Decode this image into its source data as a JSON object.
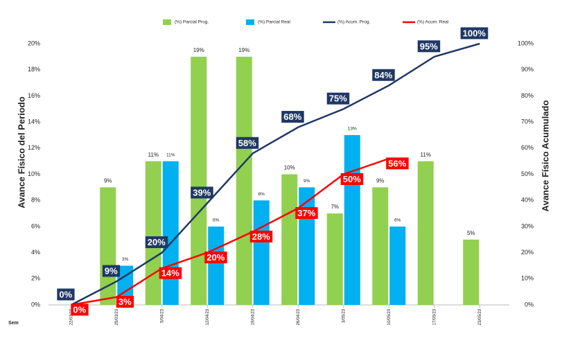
{
  "chart_data": {
    "type": "bar",
    "y_label": "Avance Físico del Periodo",
    "y2_label": "Avance Físico Acumulado",
    "x_label": "Sem",
    "categories": [
      "22/03/23",
      "29/03/23",
      "5/04/23",
      "12/04/23",
      "19/04/23",
      "26/04/23",
      "3/05/23",
      "10/05/23",
      "17/05/23",
      "23/05/23"
    ],
    "series": [
      {
        "name": "(%) Parcial Prog.",
        "type": "bar",
        "color": "#92d050",
        "values": [
          null,
          9,
          11,
          19,
          19,
          10,
          7,
          9,
          11,
          5
        ],
        "value_labels": [
          null,
          "9%",
          "11%",
          "19%",
          "19%",
          "10%",
          "7%",
          "9%",
          "11%",
          "5%"
        ]
      },
      {
        "name": "(%) Parcial Real",
        "type": "bar",
        "color": "#00b0f0",
        "values": [
          null,
          3,
          11,
          6,
          8,
          9,
          13,
          6,
          null,
          null
        ],
        "value_labels": [
          null,
          "3%",
          "11%",
          "6%",
          "8%",
          "9%",
          "13%",
          "6%",
          null,
          null
        ]
      },
      {
        "name": "(%) Acum. Prog.",
        "type": "line",
        "axis": "y2",
        "color": "#1f3864",
        "values": [
          0,
          9,
          20,
          39,
          58,
          68,
          75,
          84,
          95,
          100
        ],
        "value_labels": [
          "0%",
          "9%",
          "20%",
          "39%",
          "58%",
          "68%",
          "75%",
          "84%",
          "95%",
          "100%"
        ]
      },
      {
        "name": "(%) Acum. Real",
        "type": "line",
        "axis": "y2",
        "color": "#ff0000",
        "values": [
          0,
          3,
          14,
          20,
          28,
          37,
          50,
          56,
          null,
          null
        ],
        "value_labels": [
          "0%",
          "3%",
          "14%",
          "20%",
          "28%",
          "37%",
          "50%",
          "56%",
          null,
          null
        ]
      }
    ],
    "ylim": [
      0,
      20
    ],
    "yticks": [
      {
        "value": 0,
        "label": "0%"
      },
      {
        "value": 2,
        "label": "2%"
      },
      {
        "value": 4,
        "label": "4%"
      },
      {
        "value": 6,
        "label": "6%"
      },
      {
        "value": 8,
        "label": "8%"
      },
      {
        "value": 10,
        "label": "10%"
      },
      {
        "value": 12,
        "label": "12%"
      },
      {
        "value": 14,
        "label": "14%"
      },
      {
        "value": 16,
        "label": "16%"
      },
      {
        "value": 18,
        "label": "18%"
      },
      {
        "value": 20,
        "label": "20%"
      }
    ],
    "y2lim": [
      0,
      100
    ],
    "y2ticks": [
      {
        "value": 0,
        "label": "0%"
      },
      {
        "value": 10,
        "label": "10%"
      },
      {
        "value": 20,
        "label": "20%"
      },
      {
        "value": 30,
        "label": "30%"
      },
      {
        "value": 40,
        "label": "40%"
      },
      {
        "value": 50,
        "label": "50%"
      },
      {
        "value": 60,
        "label": "60%"
      },
      {
        "value": 70,
        "label": "70%"
      },
      {
        "value": 80,
        "label": "80%"
      },
      {
        "value": 90,
        "label": "90%"
      },
      {
        "value": 100,
        "label": "100%"
      }
    ],
    "grid": false,
    "legend": "top"
  }
}
